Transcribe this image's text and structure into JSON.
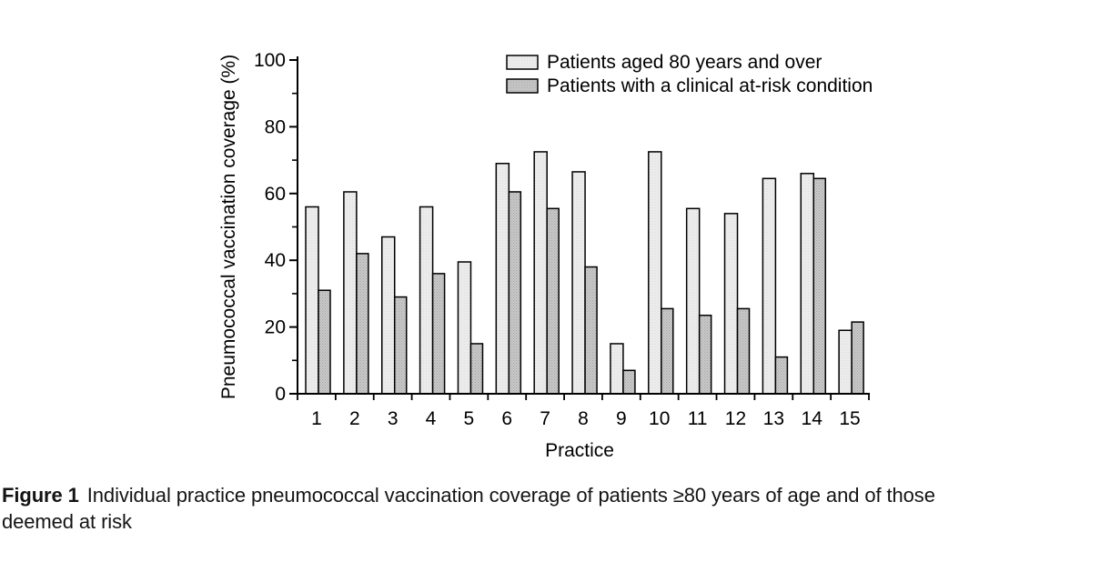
{
  "figure": {
    "caption_label": "Figure 1",
    "caption_line1": "Individual practice pneumococcal vaccination coverage of patients ≥80 years of age and of those",
    "caption_line2": "deemed at risk"
  },
  "chart_data": {
    "type": "bar",
    "title": "",
    "xlabel": "Practice",
    "ylabel": "Pneumococcal vaccination coverage (%)",
    "ylim": [
      0,
      100
    ],
    "yticks": [
      0,
      20,
      40,
      60,
      80,
      100
    ],
    "minor_ytick_step": 10,
    "grid": false,
    "legend_position": "top-inside",
    "categories": [
      "1",
      "2",
      "3",
      "4",
      "5",
      "6",
      "7",
      "8",
      "9",
      "10",
      "11",
      "12",
      "13",
      "14",
      "15"
    ],
    "series": [
      {
        "name": "Patients aged 80 years and over",
        "color": "#efefef",
        "dot_color": "#d8d8d8",
        "values": [
          56,
          60.5,
          47,
          56,
          39.5,
          69,
          72.5,
          66.5,
          15,
          72.5,
          55.5,
          54,
          64.5,
          66,
          19
        ]
      },
      {
        "name": "Patients with a clinical at-risk condition",
        "color": "#c9c9c9",
        "dot_color": "#a3a3a3",
        "values": [
          31,
          42,
          29,
          36,
          15,
          60.5,
          55.5,
          38,
          7,
          25.5,
          23.5,
          25.5,
          11,
          64.5,
          21.5
        ]
      }
    ],
    "bar_outline": "#000000",
    "axis_color": "#000000",
    "text_color": "#000000"
  }
}
